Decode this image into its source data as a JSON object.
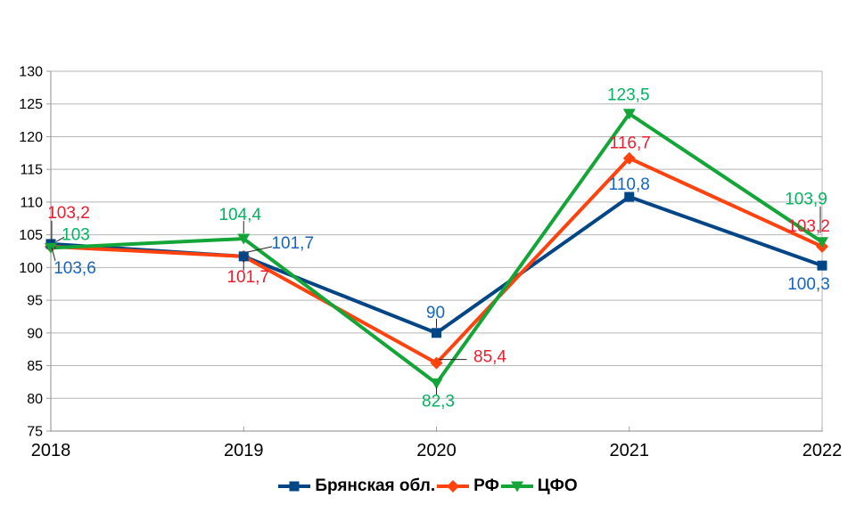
{
  "chart_data": {
    "type": "line",
    "title": "",
    "xlabel": "",
    "ylabel": "",
    "categories": [
      "2018",
      "2019",
      "2020",
      "2021",
      "2022"
    ],
    "ylim": [
      75,
      130
    ],
    "ytick_step": 5,
    "grid": "horizontal",
    "legend_position": "bottom",
    "series": [
      {
        "name": "Брянская обл.",
        "marker": "square",
        "color": "#004586",
        "label_color": "#1565C0",
        "values": [
          103.6,
          101.7,
          90,
          110.8,
          100.3
        ],
        "point_labels": [
          "103,6",
          "101,7",
          "90",
          "110,8",
          "100,3"
        ],
        "label_offsets": [
          [
            27,
            26
          ],
          [
            55,
            -16
          ],
          [
            -1,
            -24
          ],
          [
            0,
            -15
          ],
          [
            -15,
            20
          ]
        ],
        "leader_lines": [
          [
            [
              1,
              4
            ],
            [
              5,
              19
            ]
          ],
          [
            [
              5,
              -5
            ],
            [
              32,
              -11
            ]
          ],
          [
            [
              0,
              -16
            ],
            [
              0,
              -6
            ]
          ],
          null,
          null
        ]
      },
      {
        "name": "РФ",
        "marker": "diamond",
        "color": "#FF420E",
        "label_color": "#ED1C2E",
        "values": [
          103.2,
          101.7,
          85.4,
          116.7,
          103.2
        ],
        "point_labels": [
          "103,2",
          "101,7",
          "85,4",
          "116,7",
          "103,2"
        ],
        "label_offsets": [
          [
            20,
            -39
          ],
          [
            5,
            22
          ],
          [
            60,
            -8
          ],
          [
            1,
            -18
          ],
          [
            -15,
            -24
          ]
        ],
        "leader_lines": [
          [
            [
              1,
              -29
            ],
            [
              1,
              -5
            ]
          ],
          [
            [
              0,
              4
            ],
            [
              0,
              16
            ]
          ],
          [
            [
              3,
              -4
            ],
            [
              34,
              -4
            ]
          ],
          null,
          null
        ]
      },
      {
        "name": "ЦФО",
        "marker": "triangle-down",
        "color": "#13A538",
        "label_color": "#00B45F",
        "values": [
          103,
          104.4,
          82.3,
          123.5,
          103.9
        ],
        "point_labels": [
          "103",
          "104,4",
          "82,3",
          "123,5",
          "103,9"
        ],
        "label_offsets": [
          [
            28,
            -16
          ],
          [
            -4,
            -28
          ],
          [
            2,
            19
          ],
          [
            -1,
            -22
          ],
          [
            -18,
            -49
          ]
        ],
        "leader_lines": [
          [
            [
              15,
              -12
            ],
            [
              6,
              -7
            ]
          ],
          [
            [
              0,
              -20
            ],
            [
              0,
              -6
            ]
          ],
          [
            [
              0,
              4
            ],
            [
              0,
              13
            ]
          ],
          null,
          [
            [
              -2,
              -40
            ],
            [
              -2,
              -10
            ]
          ]
        ]
      }
    ],
    "colors": {
      "grid": "#b5b5b5",
      "axis": "#a0a0a0",
      "tick_label": "#000000",
      "leader": "#222222"
    }
  }
}
